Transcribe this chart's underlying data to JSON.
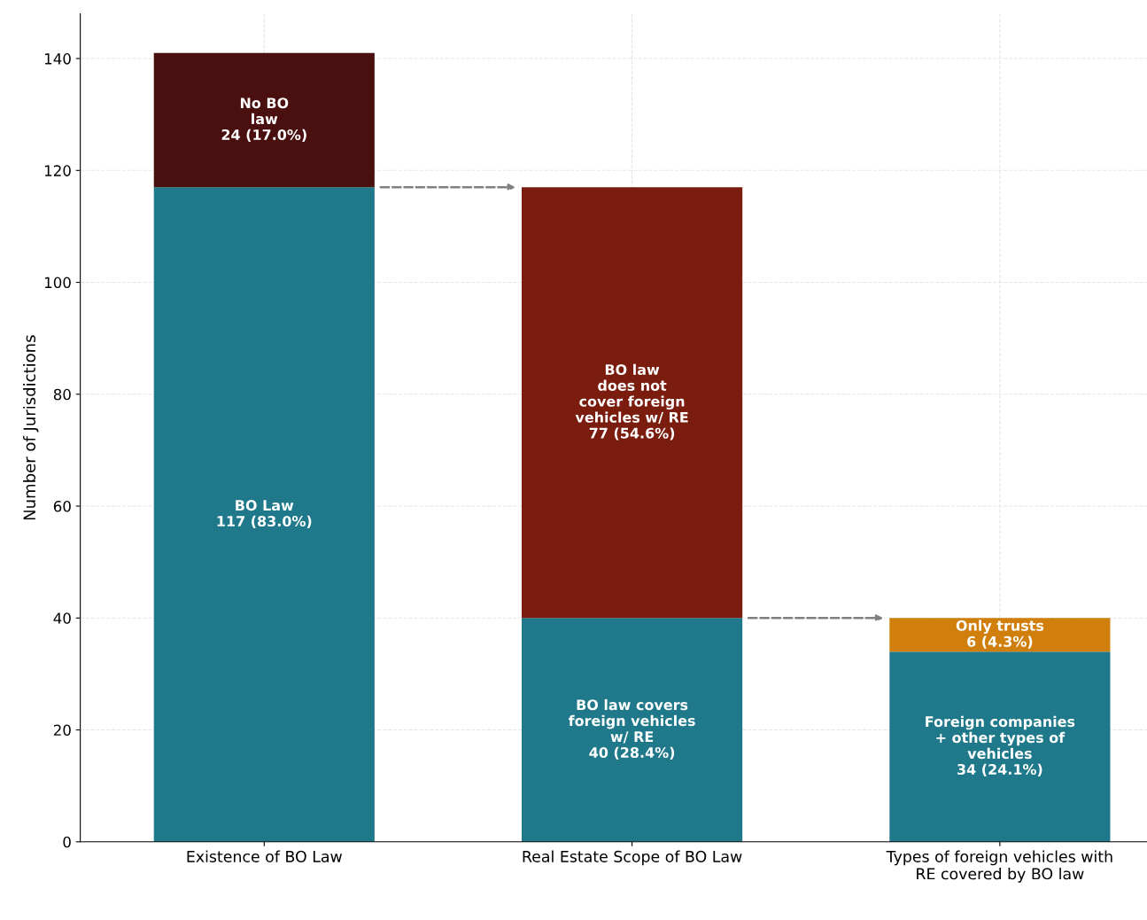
{
  "chart_data": {
    "type": "bar",
    "stacked": true,
    "ylabel": "Number of Jurisdictions",
    "categories": [
      "Existence of BO Law",
      "Real Estate Scope of BO Law",
      "Types of foreign vehicles with\nRE covered by BO law"
    ],
    "series": [
      {
        "color": "#20798a",
        "values": [
          117,
          40,
          34
        ],
        "value_labels": [
          "BO Law\n117 (83.0%)",
          "BO law covers\nforeign vehicles\nw/ RE\n40 (28.4%)",
          "Foreign companies\n+ other types of\nvehicles\n34 (24.1%)"
        ]
      },
      {
        "colors": [
          "#4a1010",
          "#7a1c0e",
          "#d17f0c"
        ],
        "values": [
          24,
          77,
          6
        ],
        "value_labels": [
          "No BO\nlaw\n24 (17.0%)",
          "BO law\ndoes not\ncover foreign\nvehicles w/ RE\n77 (54.6%)",
          "Only trusts\n6 (4.3%)"
        ]
      }
    ],
    "ylim": [
      0,
      148
    ],
    "yticks": [
      0,
      20,
      40,
      60,
      80,
      100,
      120,
      140
    ],
    "grid": true,
    "legend": false
  }
}
